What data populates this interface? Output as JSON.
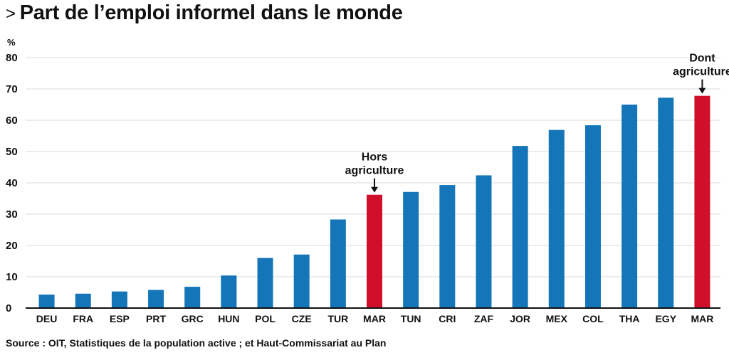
{
  "title_prefix": ">",
  "title": "Part de l’emploi informel dans le monde",
  "source": "Source : OIT, Statistiques de la population active ; et Haut-Commissariat au Plan",
  "colors": {
    "default_bar": "#1476b8",
    "highlight_bar": "#d0102a",
    "gridline": "#d9d9d9",
    "axis": "#111111",
    "text": "#111111"
  },
  "chart_data": {
    "type": "bar",
    "ylabel": "%",
    "ylim": [
      0,
      80
    ],
    "yticks": [
      0,
      10,
      20,
      30,
      40,
      50,
      60,
      70,
      80
    ],
    "grid": true,
    "categories": [
      "DEU",
      "FRA",
      "ESP",
      "PRT",
      "GRC",
      "HUN",
      "POL",
      "CZE",
      "TUR",
      "MAR",
      "TUN",
      "CRI",
      "ZAF",
      "JOR",
      "MEX",
      "COL",
      "THA",
      "EGY",
      "MAR"
    ],
    "values": [
      4.3,
      4.6,
      5.3,
      5.8,
      6.8,
      10.4,
      16.0,
      17.1,
      28.3,
      36.2,
      37.1,
      39.3,
      42.4,
      51.8,
      56.9,
      58.4,
      65.0,
      67.2,
      67.8
    ],
    "highlighted": [
      9,
      18
    ],
    "annotations": [
      {
        "index": 9,
        "lines": [
          "Hors",
          "agriculture"
        ]
      },
      {
        "index": 18,
        "lines": [
          "Dont",
          "agriculture"
        ]
      }
    ]
  }
}
